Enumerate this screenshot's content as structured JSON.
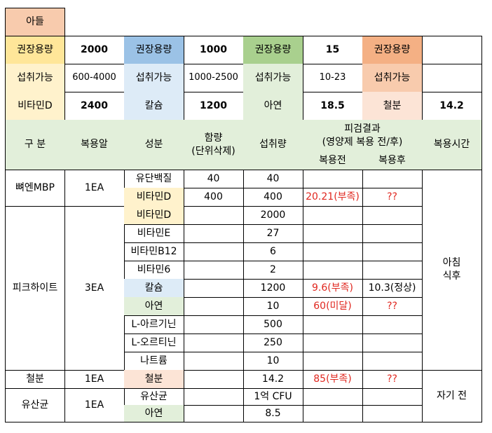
{
  "title": "아들",
  "summary": {
    "row1": [
      "권장용량",
      "2000",
      "권장용량",
      "1000",
      "권장용량",
      "15",
      "권장용량",
      ""
    ],
    "row2": [
      "섭취가능",
      "600-4000",
      "섭취가능",
      "1000-2500",
      "섭취가능",
      "10-23",
      "섭취가능",
      ""
    ],
    "row3": [
      "비타민D",
      "2400",
      "칼슘",
      "1200",
      "아연",
      "18.5",
      "철분",
      "14.2"
    ]
  },
  "header": {
    "category": "구  분",
    "pill": "복용알",
    "ingredient": "성분",
    "content": "함량\n(단위삭제)",
    "intake": "섭취량",
    "test_result": "피검결과\n(영양제 복용 전/후)",
    "before": "복용전",
    "after": "복용후",
    "time": "복용시간"
  },
  "groups": [
    {
      "name": "뼈엔MBP",
      "pill": "1EA"
    },
    {
      "name": "피크하이트",
      "pill": "3EA"
    },
    {
      "name": "철분",
      "pill": "1EA"
    },
    {
      "name": "유산균",
      "pill": "1EA"
    }
  ],
  "rows": [
    {
      "ingredient": "유단백질",
      "content": "40",
      "intake": "40",
      "before": "",
      "after": ""
    },
    {
      "ingredient": "비타민D",
      "content": "400",
      "intake": "400",
      "before": "20.21(부족)",
      "after": "??"
    },
    {
      "ingredient": "비타민D",
      "content": "",
      "intake": "2000",
      "before": "",
      "after": ""
    },
    {
      "ingredient": "비타민E",
      "content": "",
      "intake": "27",
      "before": "",
      "after": ""
    },
    {
      "ingredient": "비타민B12",
      "content": "",
      "intake": "6",
      "before": "",
      "after": ""
    },
    {
      "ingredient": "비타민6",
      "content": "",
      "intake": "2",
      "before": "",
      "after": ""
    },
    {
      "ingredient": "칼슘",
      "content": "",
      "intake": "1200",
      "before": "9.6(부족)",
      "after": "10.3(정상)"
    },
    {
      "ingredient": "아연",
      "content": "",
      "intake": "10",
      "before": "60(미달)",
      "after": "??"
    },
    {
      "ingredient": "L-아르기닌",
      "content": "",
      "intake": "500",
      "before": "",
      "after": ""
    },
    {
      "ingredient": "L-오르티닌",
      "content": "",
      "intake": "250",
      "before": "",
      "after": ""
    },
    {
      "ingredient": "나트륨",
      "content": "",
      "intake": "10",
      "before": "",
      "after": ""
    },
    {
      "ingredient": "철분",
      "content": "",
      "intake": "14.2",
      "before": "85(부족)",
      "after": "??"
    },
    {
      "ingredient": "유산균",
      "content": "",
      "intake": "1억 CFU",
      "before": "",
      "after": ""
    },
    {
      "ingredient": "아연",
      "content": "",
      "intake": "8.5",
      "before": "",
      "after": ""
    }
  ],
  "times": [
    "아침\n식후",
    "자기 전"
  ],
  "colors": {
    "peach": "#f8cbad",
    "yellow": "#ffe699",
    "blue": "#9bc2e6",
    "green": "#a9d08e",
    "orange": "#f4b084",
    "light_yellow": "#fff2cc",
    "light_blue": "#ddebf7",
    "light_green": "#e2efda",
    "light_peach": "#fce4d6",
    "red_text": "#e0271f"
  }
}
